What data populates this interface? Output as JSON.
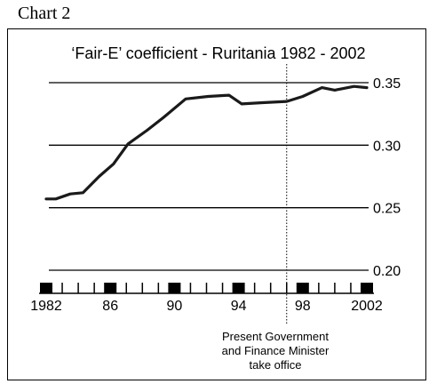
{
  "page": {
    "chart_label": "Chart 2"
  },
  "chart_data": {
    "type": "line",
    "title": "‘Fair-E’ coefficient - Ruritania 1982 - 2002",
    "xlabel": "",
    "ylabel": "",
    "xlim": [
      1982,
      2002
    ],
    "ylim": [
      0.2,
      0.35
    ],
    "x_tick_labels": [
      "1982",
      "86",
      "90",
      "94",
      "98",
      "2002"
    ],
    "x_tick_values": [
      1982,
      1986,
      1990,
      1994,
      1998,
      2002
    ],
    "y_ticks": [
      0.35,
      0.3,
      0.25,
      0.2
    ],
    "y_tick_labels": [
      "0.35",
      "0.30",
      "0.25",
      "0.20"
    ],
    "grid": "horizontal",
    "series": [
      {
        "x": [
          1982,
          1982.6,
          1983.5,
          1984.3,
          1985.3,
          1986.2,
          1987.1,
          1988.3,
          1989.3,
          1990.7,
          1992.1,
          1993.4,
          1994.2,
          1995.5,
          1997,
          1998,
          1999.2,
          2000,
          2001.2,
          2002
        ],
        "values": [
          0.257,
          0.257,
          0.261,
          0.262,
          0.275,
          0.285,
          0.301,
          0.312,
          0.322,
          0.337,
          0.339,
          0.34,
          0.333,
          0.334,
          0.335,
          0.339,
          0.346,
          0.344,
          0.347,
          0.346
        ]
      }
    ],
    "annotation": {
      "x": 1997,
      "lines": [
        "Present Government",
        "and Finance Minister",
        "take office"
      ]
    }
  }
}
